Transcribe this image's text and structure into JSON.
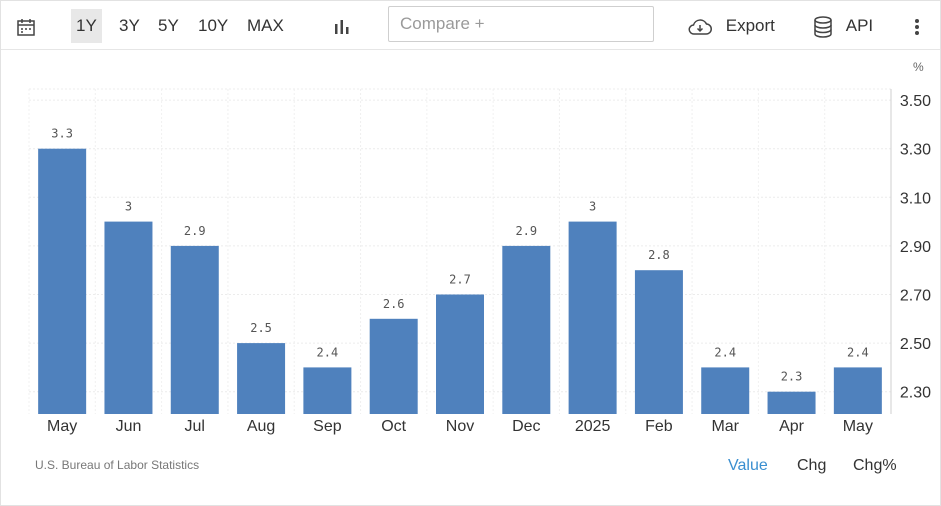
{
  "toolbar": {
    "ranges": [
      "1Y",
      "3Y",
      "5Y",
      "10Y",
      "MAX"
    ],
    "active_range": "1Y",
    "compare_placeholder": "Compare +",
    "export_label": "Export",
    "api_label": "API"
  },
  "chart_data": {
    "type": "bar",
    "categories": [
      "May",
      "Jun",
      "Jul",
      "Aug",
      "Sep",
      "Oct",
      "Nov",
      "Dec",
      "2025",
      "Feb",
      "Mar",
      "Apr",
      "May"
    ],
    "values": [
      3.3,
      3,
      2.9,
      2.5,
      2.4,
      2.6,
      2.7,
      2.9,
      3,
      2.8,
      2.4,
      2.3,
      2.4
    ],
    "data_labels": [
      "3.3",
      "3",
      "2.9",
      "2.5",
      "2.4",
      "2.6",
      "2.7",
      "2.9",
      "3",
      "2.8",
      "2.4",
      "2.3",
      "2.4"
    ],
    "y_ticks": [
      "3.50",
      "3.30",
      "3.10",
      "2.90",
      "2.70",
      "2.50",
      "2.30"
    ],
    "y_tick_values": [
      3.5,
      3.3,
      3.1,
      2.9,
      2.7,
      2.5,
      2.3
    ],
    "ylim": [
      2.2,
      3.55
    ],
    "unit": "%",
    "y_axis_position": "right",
    "grid": true,
    "bar_color": "#4f81bd"
  },
  "footer": {
    "source": "U.S. Bureau of Labor Statistics",
    "toggles": [
      "Value",
      "Chg",
      "Chg%"
    ],
    "active_toggle": "Value"
  }
}
